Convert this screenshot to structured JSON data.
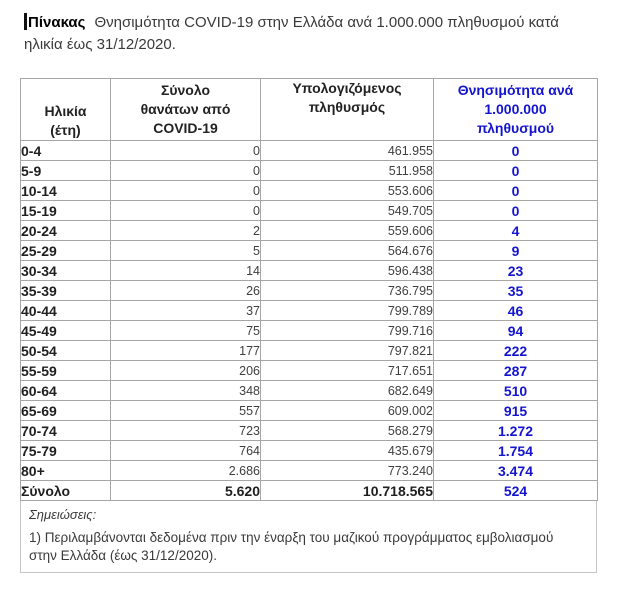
{
  "title": {
    "label": "Πίνακας",
    "text": "Θνησιμότητα COVID-19 στην Ελλάδα ανά 1.000.000 πληθυσμού κατά ηλικία έως 31/12/2020."
  },
  "table": {
    "header": {
      "age": [
        "Ηλικία",
        "(έτη)"
      ],
      "deaths": [
        "Σύνολο",
        "θανάτων από",
        "COVID-19"
      ],
      "population": [
        "Υπολογιζόμενος",
        "πληθυσμός"
      ],
      "mortality": [
        "Θνησιμότητα ανά",
        "1.000.000",
        "πληθυσμού"
      ]
    },
    "rows": [
      {
        "age": "0-4",
        "deaths": "0",
        "population": "461.955",
        "mortality": "0"
      },
      {
        "age": "5-9",
        "deaths": "0",
        "population": "511.958",
        "mortality": "0"
      },
      {
        "age": "10-14",
        "deaths": "0",
        "population": "553.606",
        "mortality": "0"
      },
      {
        "age": "15-19",
        "deaths": "0",
        "population": "549.705",
        "mortality": "0"
      },
      {
        "age": "20-24",
        "deaths": "2",
        "population": "559.606",
        "mortality": "4"
      },
      {
        "age": "25-29",
        "deaths": "5",
        "population": "564.676",
        "mortality": "9"
      },
      {
        "age": "30-34",
        "deaths": "14",
        "population": "596.438",
        "mortality": "23"
      },
      {
        "age": "35-39",
        "deaths": "26",
        "population": "736.795",
        "mortality": "35"
      },
      {
        "age": "40-44",
        "deaths": "37",
        "population": "799.789",
        "mortality": "46"
      },
      {
        "age": "45-49",
        "deaths": "75",
        "population": "799.716",
        "mortality": "94"
      },
      {
        "age": "50-54",
        "deaths": "177",
        "population": "797.821",
        "mortality": "222"
      },
      {
        "age": "55-59",
        "deaths": "206",
        "population": "717.651",
        "mortality": "287"
      },
      {
        "age": "60-64",
        "deaths": "348",
        "population": "682.649",
        "mortality": "510"
      },
      {
        "age": "65-69",
        "deaths": "557",
        "population": "609.002",
        "mortality": "915"
      },
      {
        "age": "70-74",
        "deaths": "723",
        "population": "568.279",
        "mortality": "1.272"
      },
      {
        "age": "75-79",
        "deaths": "764",
        "population": "435.679",
        "mortality": "1.754"
      },
      {
        "age": "80+",
        "deaths": "2.686",
        "population": "773.240",
        "mortality": "3.474"
      }
    ],
    "total": {
      "age": "Σύνολο",
      "deaths": "5.620",
      "population": "10.718.565",
      "mortality": "524"
    }
  },
  "notes": {
    "heading": "Σημειώσεις:",
    "items": [
      "1) Περιλαμβάνονται δεδομένα πριν την έναρξη του μαζικού προγράμματος εμβολιασμού στην Ελλάδα (έως 31/12/2020)."
    ]
  },
  "chart_data": {
    "type": "table",
    "title": "Πίνακας Θνησιμότητα COVID-19 στην Ελλάδα ανά 1.000.000 πληθυσμού κατά ηλικία έως 31/12/2020.",
    "columns": [
      "Ηλικία (έτη)",
      "Σύνολο θανάτων από COVID-19",
      "Υπολογιζόμενος πληθυσμός",
      "Θνησιμότητα ανά 1.000.000 πληθυσμού"
    ],
    "age_groups": [
      "0-4",
      "5-9",
      "10-14",
      "15-19",
      "20-24",
      "25-29",
      "30-34",
      "35-39",
      "40-44",
      "45-49",
      "50-54",
      "55-59",
      "60-64",
      "65-69",
      "70-74",
      "75-79",
      "80+"
    ],
    "deaths": [
      0,
      0,
      0,
      0,
      2,
      5,
      14,
      26,
      37,
      75,
      177,
      206,
      348,
      557,
      723,
      764,
      2686
    ],
    "population": [
      461955,
      511958,
      553606,
      549705,
      559606,
      564676,
      596438,
      736795,
      799789,
      799716,
      797821,
      717651,
      682649,
      609002,
      568279,
      435679,
      773240
    ],
    "mortality_per_million": [
      0,
      0,
      0,
      0,
      4,
      9,
      23,
      35,
      46,
      94,
      222,
      287,
      510,
      915,
      1272,
      1754,
      3474
    ],
    "total": {
      "deaths": 5620,
      "population": 10718565,
      "mortality_per_million": 524
    }
  },
  "colors": {
    "accent_blue": "#1414cf",
    "table_border": "#a6a6a6",
    "notes_border": "#c6c6c6",
    "text": "#3a3a3a"
  }
}
